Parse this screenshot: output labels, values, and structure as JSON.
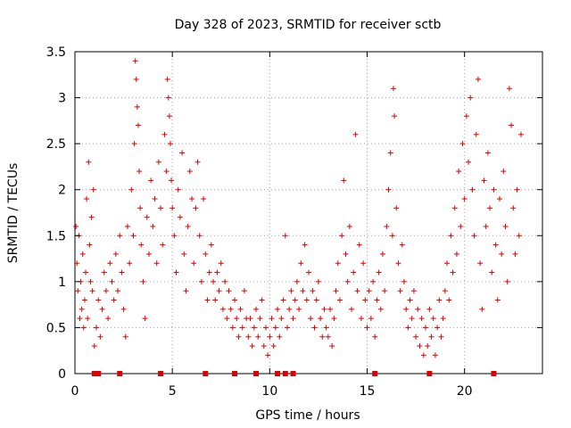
{
  "chart_data": {
    "type": "scatter",
    "title": "Day 328 of 2023, SRMTID for receiver sctb",
    "xlabel": "GPS time / hours",
    "ylabel": "SRMTID / TECUs",
    "xlim": [
      0,
      24
    ],
    "ylim": [
      0,
      3.5
    ],
    "x_ticks": [
      0,
      5,
      10,
      15,
      20
    ],
    "x_tick_labels": [
      "0",
      "5",
      "10",
      "15",
      "20"
    ],
    "y_ticks": [
      0,
      0.5,
      1,
      1.5,
      2,
      2.5,
      3,
      3.5
    ],
    "y_tick_labels": [
      "0",
      "0.5",
      "1",
      "1.5",
      "2",
      "2.5",
      "3",
      "3.5"
    ],
    "grid": true,
    "marker": "+",
    "series": [
      {
        "name": "SRMTID",
        "color": "#dd0000",
        "points": [
          [
            0.05,
            1.6
          ],
          [
            0.1,
            1.2
          ],
          [
            0.15,
            0.9
          ],
          [
            0.2,
            1.5
          ],
          [
            0.25,
            0.6
          ],
          [
            0.3,
            1.0
          ],
          [
            0.35,
            0.7
          ],
          [
            0.4,
            1.3
          ],
          [
            0.45,
            0.5
          ],
          [
            0.5,
            0.8
          ],
          [
            0.55,
            1.1
          ],
          [
            0.6,
            1.9
          ],
          [
            0.65,
            0.6
          ],
          [
            0.7,
            2.3
          ],
          [
            0.75,
            1.4
          ],
          [
            0.8,
            1.0
          ],
          [
            0.85,
            1.7
          ],
          [
            0.9,
            0.9
          ],
          [
            0.95,
            2.0
          ],
          [
            1.0,
            0.3
          ],
          [
            1.1,
            0.5
          ],
          [
            1.2,
            0.8
          ],
          [
            1.3,
            0.4
          ],
          [
            1.4,
            0.7
          ],
          [
            1.5,
            1.1
          ],
          [
            1.6,
            0.9
          ],
          [
            1.7,
            0.6
          ],
          [
            1.8,
            1.2
          ],
          [
            1.9,
            1.0
          ],
          [
            2.0,
            0.8
          ],
          [
            2.1,
            1.3
          ],
          [
            2.2,
            0.9
          ],
          [
            2.3,
            1.5
          ],
          [
            2.4,
            1.1
          ],
          [
            2.5,
            0.7
          ],
          [
            2.6,
            0.4
          ],
          [
            2.7,
            1.6
          ],
          [
            2.8,
            1.2
          ],
          [
            2.9,
            2.0
          ],
          [
            3.0,
            1.5
          ],
          [
            3.05,
            2.5
          ],
          [
            3.1,
            3.4
          ],
          [
            3.15,
            3.2
          ],
          [
            3.2,
            2.9
          ],
          [
            3.25,
            2.7
          ],
          [
            3.3,
            2.2
          ],
          [
            3.35,
            1.8
          ],
          [
            3.4,
            1.4
          ],
          [
            3.5,
            1.0
          ],
          [
            3.6,
            0.6
          ],
          [
            3.7,
            1.7
          ],
          [
            3.8,
            1.3
          ],
          [
            3.9,
            2.1
          ],
          [
            4.0,
            1.6
          ],
          [
            4.1,
            1.9
          ],
          [
            4.2,
            1.2
          ],
          [
            4.3,
            2.3
          ],
          [
            4.4,
            1.8
          ],
          [
            4.5,
            1.4
          ],
          [
            4.6,
            2.6
          ],
          [
            4.7,
            2.2
          ],
          [
            4.75,
            3.2
          ],
          [
            4.8,
            3.0
          ],
          [
            4.85,
            2.8
          ],
          [
            4.9,
            2.5
          ],
          [
            4.95,
            2.1
          ],
          [
            5.0,
            1.8
          ],
          [
            5.1,
            1.5
          ],
          [
            5.2,
            1.1
          ],
          [
            5.3,
            2.0
          ],
          [
            5.4,
            1.7
          ],
          [
            5.5,
            2.4
          ],
          [
            5.6,
            1.3
          ],
          [
            5.7,
            0.9
          ],
          [
            5.8,
            1.6
          ],
          [
            5.9,
            2.2
          ],
          [
            6.0,
            1.9
          ],
          [
            6.1,
            1.2
          ],
          [
            6.2,
            1.8
          ],
          [
            6.3,
            2.3
          ],
          [
            6.4,
            1.5
          ],
          [
            6.5,
            1.0
          ],
          [
            6.6,
            1.9
          ],
          [
            6.7,
            1.3
          ],
          [
            6.8,
            0.8
          ],
          [
            6.9,
            1.1
          ],
          [
            7.0,
            1.4
          ],
          [
            7.1,
            1.0
          ],
          [
            7.2,
            0.8
          ],
          [
            7.3,
            1.1
          ],
          [
            7.4,
            0.9
          ],
          [
            7.5,
            1.2
          ],
          [
            7.6,
            0.7
          ],
          [
            7.7,
            1.0
          ],
          [
            7.8,
            0.6
          ],
          [
            7.9,
            0.9
          ],
          [
            8.0,
            0.7
          ],
          [
            8.1,
            0.5
          ],
          [
            8.2,
            0.8
          ],
          [
            8.3,
            0.6
          ],
          [
            8.4,
            0.4
          ],
          [
            8.5,
            0.7
          ],
          [
            8.6,
            0.5
          ],
          [
            8.7,
            0.9
          ],
          [
            8.8,
            0.6
          ],
          [
            8.9,
            0.4
          ],
          [
            9.0,
            0.6
          ],
          [
            9.1,
            0.3
          ],
          [
            9.2,
            0.5
          ],
          [
            9.3,
            0.7
          ],
          [
            9.4,
            0.4
          ],
          [
            9.5,
            0.6
          ],
          [
            9.6,
            0.8
          ],
          [
            9.7,
            0.3
          ],
          [
            9.8,
            0.5
          ],
          [
            9.9,
            0.2
          ],
          [
            10.0,
            0.4
          ],
          [
            10.1,
            0.6
          ],
          [
            10.2,
            0.3
          ],
          [
            10.3,
            0.5
          ],
          [
            10.4,
            0.7
          ],
          [
            10.5,
            0.4
          ],
          [
            10.6,
            0.6
          ],
          [
            10.7,
            0.8
          ],
          [
            10.8,
            1.5
          ],
          [
            10.9,
            0.5
          ],
          [
            11.0,
            0.7
          ],
          [
            11.1,
            0.9
          ],
          [
            11.2,
            0.6
          ],
          [
            11.3,
            0.8
          ],
          [
            11.4,
            1.0
          ],
          [
            11.5,
            0.7
          ],
          [
            11.6,
            1.2
          ],
          [
            11.7,
            0.9
          ],
          [
            11.8,
            1.4
          ],
          [
            11.9,
            0.8
          ],
          [
            12.0,
            1.1
          ],
          [
            12.1,
            0.6
          ],
          [
            12.2,
            0.9
          ],
          [
            12.3,
            0.5
          ],
          [
            12.4,
            0.8
          ],
          [
            12.5,
            1.0
          ],
          [
            12.6,
            0.6
          ],
          [
            12.7,
            0.4
          ],
          [
            12.8,
            0.7
          ],
          [
            12.9,
            0.5
          ],
          [
            13.0,
            0.4
          ],
          [
            13.1,
            0.7
          ],
          [
            13.2,
            0.3
          ],
          [
            13.3,
            0.6
          ],
          [
            13.4,
            0.9
          ],
          [
            13.5,
            1.2
          ],
          [
            13.6,
            0.8
          ],
          [
            13.7,
            1.5
          ],
          [
            13.8,
            2.1
          ],
          [
            13.9,
            1.3
          ],
          [
            14.0,
            1.0
          ],
          [
            14.1,
            1.6
          ],
          [
            14.2,
            0.7
          ],
          [
            14.3,
            1.1
          ],
          [
            14.4,
            2.6
          ],
          [
            14.5,
            0.9
          ],
          [
            14.6,
            1.4
          ],
          [
            14.7,
            0.6
          ],
          [
            14.8,
            1.2
          ],
          [
            14.9,
            0.8
          ],
          [
            15.0,
            0.5
          ],
          [
            15.1,
            0.9
          ],
          [
            15.2,
            0.6
          ],
          [
            15.3,
            1.0
          ],
          [
            15.4,
            0.4
          ],
          [
            15.5,
            0.8
          ],
          [
            15.6,
            1.1
          ],
          [
            15.7,
            0.7
          ],
          [
            15.8,
            1.3
          ],
          [
            15.9,
            0.9
          ],
          [
            16.0,
            1.6
          ],
          [
            16.1,
            2.0
          ],
          [
            16.2,
            2.4
          ],
          [
            16.3,
            1.5
          ],
          [
            16.35,
            3.1
          ],
          [
            16.4,
            2.8
          ],
          [
            16.5,
            1.8
          ],
          [
            16.6,
            1.2
          ],
          [
            16.7,
            0.9
          ],
          [
            16.8,
            1.4
          ],
          [
            16.9,
            1.0
          ],
          [
            17.0,
            0.7
          ],
          [
            17.1,
            0.5
          ],
          [
            17.2,
            0.8
          ],
          [
            17.3,
            0.6
          ],
          [
            17.4,
            0.9
          ],
          [
            17.5,
            0.4
          ],
          [
            17.6,
            0.7
          ],
          [
            17.7,
            0.3
          ],
          [
            17.8,
            0.6
          ],
          [
            17.9,
            0.2
          ],
          [
            18.0,
            0.5
          ],
          [
            18.1,
            0.3
          ],
          [
            18.2,
            0.7
          ],
          [
            18.3,
            0.4
          ],
          [
            18.4,
            0.6
          ],
          [
            18.5,
            0.2
          ],
          [
            18.6,
            0.5
          ],
          [
            18.7,
            0.8
          ],
          [
            18.8,
            0.4
          ],
          [
            18.9,
            0.6
          ],
          [
            19.0,
            0.9
          ],
          [
            19.1,
            1.2
          ],
          [
            19.2,
            0.8
          ],
          [
            19.3,
            1.5
          ],
          [
            19.4,
            1.1
          ],
          [
            19.5,
            1.8
          ],
          [
            19.6,
            1.3
          ],
          [
            19.7,
            2.2
          ],
          [
            19.8,
            1.6
          ],
          [
            19.9,
            2.5
          ],
          [
            20.0,
            1.9
          ],
          [
            20.1,
            2.8
          ],
          [
            20.2,
            2.3
          ],
          [
            20.3,
            3.0
          ],
          [
            20.4,
            2.0
          ],
          [
            20.5,
            1.5
          ],
          [
            20.6,
            2.6
          ],
          [
            20.7,
            3.2
          ],
          [
            20.8,
            1.2
          ],
          [
            20.9,
            0.7
          ],
          [
            21.0,
            2.1
          ],
          [
            21.1,
            1.6
          ],
          [
            21.2,
            2.4
          ],
          [
            21.3,
            1.8
          ],
          [
            21.4,
            1.1
          ],
          [
            21.5,
            2.0
          ],
          [
            21.6,
            1.4
          ],
          [
            21.7,
            0.8
          ],
          [
            21.8,
            1.9
          ],
          [
            21.9,
            1.3
          ],
          [
            22.0,
            2.2
          ],
          [
            22.1,
            1.6
          ],
          [
            22.2,
            1.0
          ],
          [
            22.3,
            3.1
          ],
          [
            22.4,
            2.7
          ],
          [
            22.5,
            1.8
          ],
          [
            22.6,
            1.3
          ],
          [
            22.7,
            2.0
          ],
          [
            22.8,
            1.5
          ],
          [
            22.9,
            2.6
          ]
        ],
        "zero_markers": [
          1.0,
          1.1,
          1.2,
          2.3,
          4.4,
          6.7,
          8.2,
          9.3,
          10.4,
          10.8,
          11.2,
          15.4,
          18.2,
          21.5
        ]
      }
    ]
  }
}
